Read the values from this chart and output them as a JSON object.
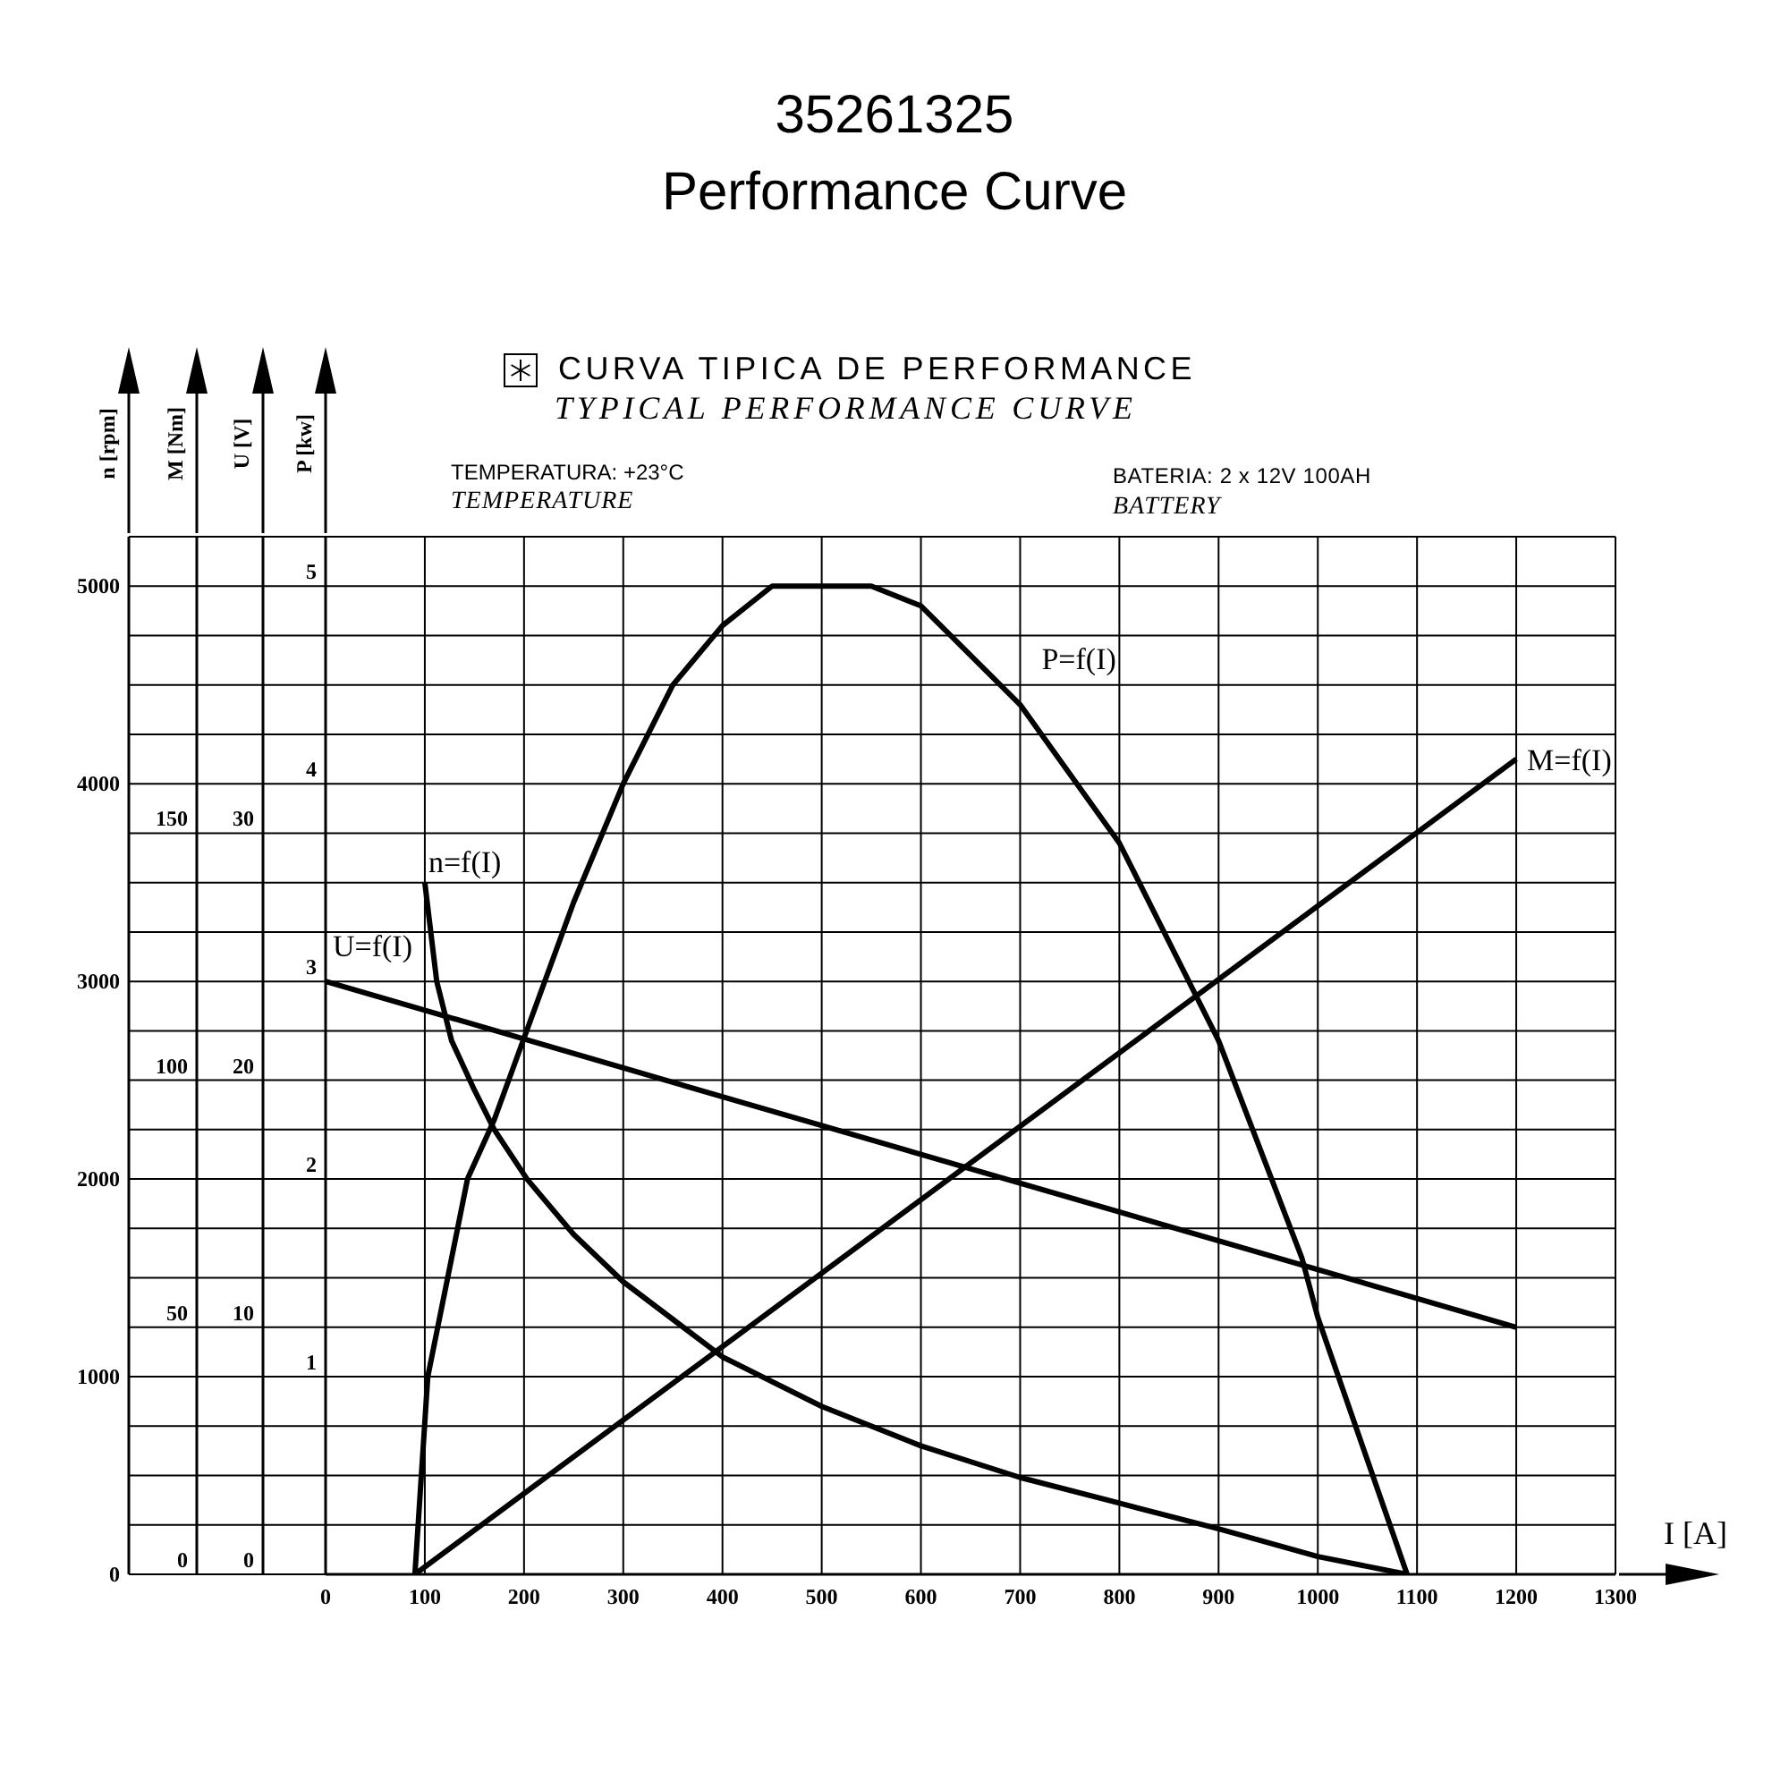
{
  "chart_data": [
    {
      "type": "line",
      "title": "35261325",
      "subtitle": "Performance Curve",
      "xlabel": "I [A]",
      "ylabel": "n [rpm]",
      "y2label": "M [Nm]",
      "y3label": "U [V]",
      "xlim": [
        0,
        1300
      ],
      "xticks": [
        0,
        100,
        200,
        300,
        400,
        500,
        600,
        700,
        800,
        900,
        1000,
        1100,
        1200,
        1300
      ],
      "ylim": [
        0,
        5250
      ],
      "yticks": [
        0,
        {
          "value": 250,
          "label": null
        },
        {
          "value": 500,
          "label": null
        },
        {
          "value": 750,
          "label": null
        },
        1000,
        {
          "value": 1250,
          "label": null
        },
        {
          "value": 1500,
          "label": null
        },
        {
          "value": 1750,
          "label": null
        },
        2000,
        {
          "value": 2250,
          "label": null
        },
        {
          "value": 2500,
          "label": null
        },
        {
          "value": 2750,
          "label": null
        },
        3000,
        {
          "value": 3250,
          "label": null
        },
        {
          "value": 3500,
          "label": null
        },
        {
          "value": 3750,
          "label": null
        },
        4000,
        {
          "value": 4250,
          "label": null
        },
        {
          "value": 4500,
          "label": null
        },
        {
          "value": 4750,
          "label": null
        },
        5000,
        {
          "value": 5250,
          "label": null
        }
      ],
      "y2lim": [
        0,
        210
      ],
      "y2ticks": [
        0,
        50,
        100,
        150
      ],
      "y3lim": [
        0,
        42
      ],
      "y3ticks": [
        0,
        10,
        20,
        30
      ],
      "grid": true,
      "series": [
        {
          "name": "n=f(I)",
          "color": "#000000",
          "x": [
            100,
            112,
            127,
            150,
            170,
            203,
            250,
            300,
            400,
            500,
            600,
            700,
            800,
            900,
            1000,
            1090
          ],
          "values": [
            3500,
            3000,
            2700,
            2450,
            2250,
            2000,
            1720,
            1480,
            1100,
            850,
            650,
            490,
            360,
            230,
            90,
            0
          ]
        },
        {
          "name": "U=f(I)",
          "color": "#000000",
          "axis": "y3",
          "x": [
            0,
            1200
          ],
          "values": [
            24,
            10
          ]
        },
        {
          "name": "M=f(I)",
          "color": "#000000",
          "axis": "y2",
          "x": [
            90,
            1200
          ],
          "values": [
            0,
            165
          ]
        }
      ],
      "annotations": [
        "CURVA TIPICA DE PERFORMANCE",
        "TYPICAL PERFORMANCE CURVE",
        "TEMPERATURA: +23°C",
        "TEMPERATURE",
        "BATERIA: 2 x 12V 100AH",
        "BATTERY"
      ]
    },
    {
      "type": "line",
      "ylabel": "P [kw]",
      "xlim": [
        0,
        1300
      ],
      "xticks": [
        0,
        100,
        200,
        300,
        400,
        500,
        600,
        700,
        800,
        900,
        1000,
        1100,
        1200,
        1300
      ],
      "ylim": [
        0,
        5.25
      ],
      "yticks": [
        1,
        2,
        3,
        4,
        5
      ],
      "tick_labels": "y",
      "series": [
        {
          "name": "P=f(I)",
          "color": "#000000",
          "x": [
            90,
            103,
            143,
            170,
            199,
            250,
            300,
            350,
            400,
            450,
            500,
            550,
            600,
            700,
            800,
            900,
            984,
            1000,
            1090
          ],
          "values": [
            0,
            1.0,
            2.0,
            2.3,
            2.7,
            3.4,
            4.0,
            4.5,
            4.8,
            5.0,
            5.0,
            5.0,
            4.9,
            4.4,
            3.7,
            2.7,
            1.6,
            1.3,
            0
          ]
        }
      ]
    }
  ]
}
